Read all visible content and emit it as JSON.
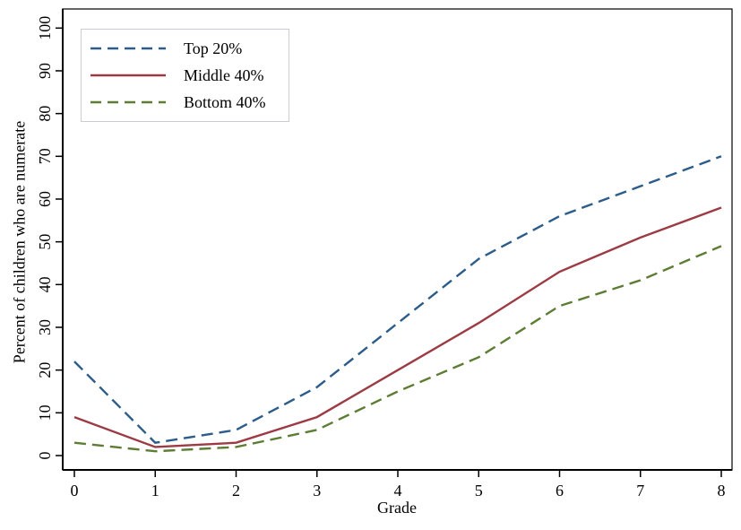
{
  "chart_data": {
    "type": "line",
    "title": "",
    "xlabel": "Grade",
    "ylabel": "Percent of children who are numerate",
    "x": [
      0,
      1,
      2,
      3,
      4,
      5,
      6,
      7,
      8
    ],
    "x_tick_labels": [
      "0",
      "1",
      "2",
      "3",
      "4",
      "5",
      "6",
      "7",
      "8"
    ],
    "y_ticks": [
      0,
      10,
      20,
      30,
      40,
      50,
      60,
      70,
      80,
      90,
      100
    ],
    "y_tick_labels": [
      "0",
      "10",
      "20",
      "30",
      "40",
      "50",
      "60",
      "70",
      "80",
      "90",
      "100"
    ],
    "xlim": [
      0,
      8
    ],
    "ylim": [
      0,
      100
    ],
    "grid": false,
    "legend_position": "top-left",
    "series": [
      {
        "name": "Top 20%",
        "color": "#2b5c8a",
        "style": "dashed",
        "values": [
          22,
          3,
          6,
          16,
          31,
          46,
          56,
          63,
          70
        ]
      },
      {
        "name": "Middle 40%",
        "color": "#9d3b44",
        "style": "solid",
        "values": [
          9,
          2,
          3,
          9,
          20,
          31,
          43,
          51,
          58
        ]
      },
      {
        "name": "Bottom 40%",
        "color": "#5c7d33",
        "style": "dashed",
        "values": [
          3,
          1,
          2,
          6,
          15,
          23,
          35,
          41,
          49
        ]
      }
    ],
    "frame_color": "#000000",
    "background_color": "#ffffff"
  }
}
